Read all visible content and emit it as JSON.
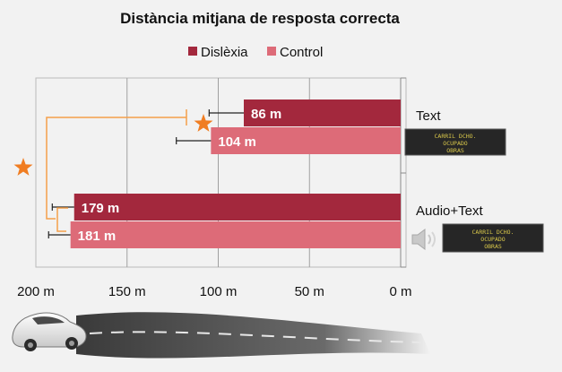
{
  "chart_data": {
    "type": "bar",
    "orientation": "horizontal",
    "x_reversed": true,
    "title": "Distància mitjana de resposta correcta",
    "categories": [
      "Text",
      "Audio+Text"
    ],
    "series": [
      {
        "name": "Dislèxia",
        "color": "#a3283d",
        "values": [
          86,
          179
        ],
        "labels": [
          "86 m",
          "179 m"
        ],
        "error": [
          19,
          12
        ]
      },
      {
        "name": "Control",
        "color": "#dd6b78",
        "values": [
          104,
          181
        ],
        "labels": [
          "104 m",
          "181 m"
        ],
        "error": [
          19,
          12
        ]
      }
    ],
    "xlim": [
      0,
      200
    ],
    "xticks": [
      200,
      150,
      100,
      50,
      0
    ],
    "xtick_labels": [
      "200 m",
      "150 m",
      "100 m",
      "50 m",
      "0 m"
    ],
    "grid": true,
    "legend": "top-center",
    "significance_markers": [
      "star",
      "star"
    ],
    "star_color": "#f07d22",
    "bracket_color": "#f5a04a"
  },
  "sign": {
    "lines": [
      "CARRIL DCHO.",
      "OCUPADO",
      "OBRAS"
    ]
  },
  "icons": [
    "speaker-icon",
    "car-icon"
  ]
}
